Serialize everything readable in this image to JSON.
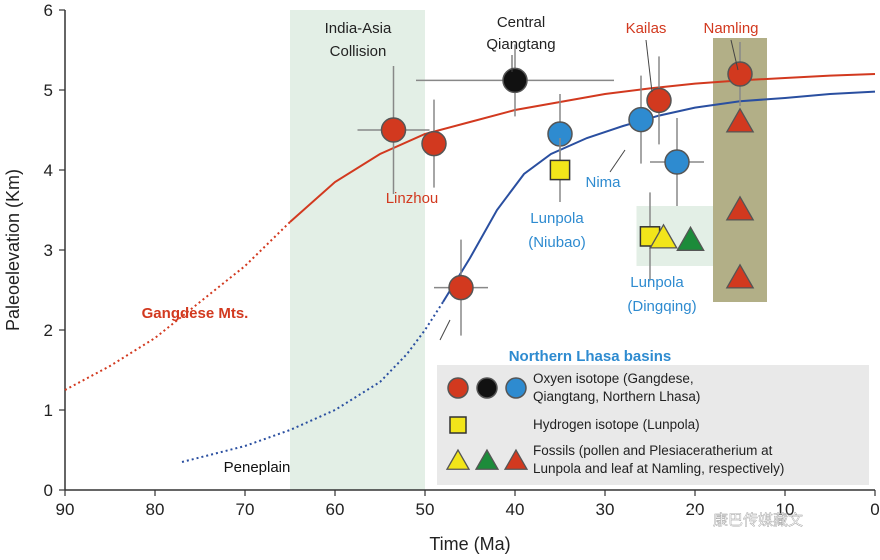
{
  "chart_data": {
    "type": "scatter",
    "xlabel": "Time (Ma)",
    "ylabel": "Paleoelevation (Km)",
    "xlim": [
      90,
      0
    ],
    "ylim": [
      0,
      6
    ],
    "x_ticks": [
      "90",
      "80",
      "70",
      "60",
      "50",
      "40",
      "30",
      "20",
      "10",
      "0"
    ],
    "y_ticks": [
      "0",
      "1",
      "2",
      "3",
      "4",
      "5",
      "6"
    ],
    "colors": {
      "gangdese": "#d2391f",
      "lhasa": "#2a4fa0",
      "qiangtang": "#111111",
      "hydrogen": "#f2e51a",
      "fossil_green": "#1c8b3a",
      "fossil_yellow": "#f2e51a",
      "band_collision": "#e3efe6",
      "band_namling": "#aaa67a"
    },
    "bands": [
      {
        "name": "India-Asia Collision",
        "x_range": [
          65,
          50
        ]
      },
      {
        "name": "Namling",
        "x_range": [
          18,
          12
        ]
      },
      {
        "name": "Lunpola (Dingqing)",
        "x_range": [
          26.5,
          18
        ]
      }
    ],
    "annotations": [
      {
        "text": "India-Asia",
        "color": "#222222"
      },
      {
        "text": "Collision",
        "color": "#222222"
      },
      {
        "text": "Central",
        "color": "#222222"
      },
      {
        "text": "Qiangtang",
        "color": "#222222"
      },
      {
        "text": "Kailas",
        "color": "#d2391f"
      },
      {
        "text": "Namling",
        "color": "#d2391f"
      },
      {
        "text": "Linzhou",
        "color": "#d2391f"
      },
      {
        "text": "Nima",
        "color": "#2e8bd0"
      },
      {
        "text": "Lunpola",
        "color": "#2e8bd0"
      },
      {
        "text": "(Niubao)",
        "color": "#2e8bd0"
      },
      {
        "text": "Lunpola",
        "color": "#2e8bd0"
      },
      {
        "text": "(Dingqing)",
        "color": "#2e8bd0"
      },
      {
        "text": "Gangdese Mts.",
        "color": "#d2391f"
      },
      {
        "text": "Northern Lhasa basins",
        "color": "#2e8bd0"
      },
      {
        "text": "Peneplain",
        "color": "#111111"
      }
    ],
    "series": [
      {
        "name": "Gangdese Mts.",
        "kind": "curve",
        "color": "#d2391f",
        "dashed_until_x": 65,
        "points": [
          [
            90,
            1.25
          ],
          [
            85,
            1.55
          ],
          [
            80,
            1.9
          ],
          [
            75,
            2.35
          ],
          [
            70,
            2.8
          ],
          [
            65,
            3.35
          ],
          [
            60,
            3.85
          ],
          [
            55,
            4.2
          ],
          [
            50,
            4.45
          ],
          [
            45,
            4.6
          ],
          [
            40,
            4.75
          ],
          [
            35,
            4.85
          ],
          [
            30,
            4.95
          ],
          [
            25,
            5.02
          ],
          [
            20,
            5.08
          ],
          [
            15,
            5.12
          ],
          [
            10,
            5.15
          ],
          [
            5,
            5.18
          ],
          [
            0,
            5.2
          ]
        ]
      },
      {
        "name": "Northern Lhasa basins",
        "kind": "curve",
        "color": "#2a4fa0",
        "dashed_until_x": 48,
        "points": [
          [
            77,
            0.35
          ],
          [
            70,
            0.55
          ],
          [
            65,
            0.75
          ],
          [
            60,
            1.0
          ],
          [
            55,
            1.35
          ],
          [
            52,
            1.7
          ],
          [
            50,
            2.0
          ],
          [
            48,
            2.35
          ],
          [
            45,
            2.9
          ],
          [
            42,
            3.5
          ],
          [
            39,
            3.95
          ],
          [
            36,
            4.2
          ],
          [
            32,
            4.4
          ],
          [
            28,
            4.55
          ],
          [
            24,
            4.68
          ],
          [
            20,
            4.78
          ],
          [
            15,
            4.86
          ],
          [
            10,
            4.9
          ],
          [
            5,
            4.95
          ],
          [
            0,
            4.98
          ]
        ]
      },
      {
        "name": "Oxyen isotope (Gangdese)",
        "kind": "circle",
        "color": "#d2391f",
        "points": [
          {
            "x": 53.5,
            "y": 4.5,
            "xerr": 4,
            "yerr": 0.8
          },
          {
            "x": 49,
            "y": 4.33,
            "xerr": 0,
            "yerr": 0.55
          },
          {
            "x": 46,
            "y": 2.53,
            "xerr": 3,
            "yerr": 0.6
          },
          {
            "x": 24,
            "y": 4.87,
            "xerr": 0,
            "yerr": 0.55
          },
          {
            "x": 15,
            "y": 5.2,
            "xerr": 0,
            "yerr": 0.4
          }
        ]
      },
      {
        "name": "Oxyen isotope (Qiangtang)",
        "kind": "circle",
        "color": "#111111",
        "points": [
          {
            "x": 40,
            "y": 5.12,
            "xerr": 11,
            "yerr": 0.45
          }
        ]
      },
      {
        "name": "Oxyen isotope (Northern Lhasa)",
        "kind": "circle",
        "color": "#2e8bd0",
        "points": [
          {
            "x": 35,
            "y": 4.45,
            "xerr": 0,
            "yerr": 0.5
          },
          {
            "x": 26,
            "y": 4.63,
            "xerr": 0,
            "yerr": 0.55
          },
          {
            "x": 22,
            "y": 4.1,
            "xerr": 3,
            "yerr": 0.55
          }
        ]
      },
      {
        "name": "Hydrogen isotope (Lunpola)",
        "kind": "square",
        "color": "#f2e51a",
        "points": [
          {
            "x": 35,
            "y": 4.0,
            "xerr": 0,
            "yerr": 0.4
          },
          {
            "x": 25,
            "y": 3.17,
            "xerr": 0,
            "yerr": 0.55
          }
        ]
      },
      {
        "name": "Fossils (Lunpola)",
        "kind": "triangle",
        "color": "#f2e51a",
        "points": [
          {
            "x": 23.5,
            "y": 3.15,
            "xerr": 0,
            "yerr": 0
          }
        ]
      },
      {
        "name": "Fossils (Plesiaceratherium)",
        "kind": "triangle",
        "color": "#1c8b3a",
        "points": [
          {
            "x": 20.5,
            "y": 3.12,
            "xerr": 0,
            "yerr": 0
          }
        ]
      },
      {
        "name": "Fossils (Namling leaf)",
        "kind": "triangle",
        "color": "#d2391f",
        "points": [
          {
            "x": 15,
            "y": 4.6,
            "xerr": 0,
            "yerr": 0
          },
          {
            "x": 15,
            "y": 3.5,
            "xerr": 0,
            "yerr": 0
          },
          {
            "x": 15,
            "y": 2.65,
            "xerr": 0,
            "yerr": 0
          }
        ]
      }
    ],
    "legend": {
      "placement": "bottom-right",
      "entries": [
        {
          "symbols": [
            [
              "circle",
              "#d2391f"
            ],
            [
              "circle",
              "#111111"
            ],
            [
              "circle",
              "#2e8bd0"
            ]
          ],
          "lines": [
            "Oxyen isotope (Gangdese,",
            "Qiangtang, Northern Lhasa)"
          ]
        },
        {
          "symbols": [
            [
              "square",
              "#f2e51a"
            ]
          ],
          "lines": [
            "Hydrogen isotope (Lunpola)"
          ]
        },
        {
          "symbols": [
            [
              "triangle",
              "#f2e51a"
            ],
            [
              "triangle",
              "#1c8b3a"
            ],
            [
              "triangle",
              "#d2391f"
            ]
          ],
          "lines": [
            "Fossils (pollen and  Plesiaceratherium at",
            "Lunpola and leaf at Namling, respectively)"
          ]
        }
      ]
    }
  },
  "watermark": {
    "text": "康巴传媒藏文",
    "icon": "wechat-icon"
  }
}
